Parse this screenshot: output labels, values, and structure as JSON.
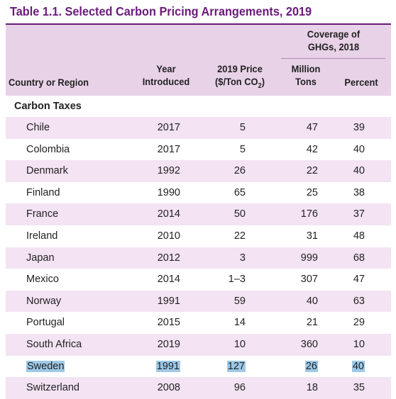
{
  "title": "Table 1.1. Selected Carbon Pricing Arrangements, 2019",
  "headers": {
    "coverage_group": [
      "Coverage of",
      "GHGs, 2018"
    ],
    "country": "Country or Region",
    "year": [
      "Year",
      "Introduced"
    ],
    "price": [
      "2019 Price",
      "($/Ton CO",
      "2",
      ")"
    ],
    "tons": [
      "Million",
      "Tons"
    ],
    "percent": "Percent"
  },
  "section_label": "Carbon Taxes",
  "rows": [
    {
      "country": "Chile",
      "year": "2017",
      "price": "5",
      "tons": "47",
      "percent": "39"
    },
    {
      "country": "Colombia",
      "year": "2017",
      "price": "5",
      "tons": "42",
      "percent": "40"
    },
    {
      "country": "Denmark",
      "year": "1992",
      "price": "26",
      "tons": "22",
      "percent": "40"
    },
    {
      "country": "Finland",
      "year": "1990",
      "price": "65",
      "tons": "25",
      "percent": "38"
    },
    {
      "country": "France",
      "year": "2014",
      "price": "50",
      "tons": "176",
      "percent": "37"
    },
    {
      "country": "Ireland",
      "year": "2010",
      "price": "22",
      "tons": "31",
      "percent": "48"
    },
    {
      "country": "Japan",
      "year": "2012",
      "price": "3",
      "tons": "999",
      "percent": "68"
    },
    {
      "country": "Mexico",
      "year": "2014",
      "price": "1–3",
      "tons": "307",
      "percent": "47"
    },
    {
      "country": "Norway",
      "year": "1991",
      "price": "59",
      "tons": "40",
      "percent": "63"
    },
    {
      "country": "Portugal",
      "year": "2015",
      "price": "14",
      "tons": "21",
      "percent": "29"
    },
    {
      "country": "South Africa",
      "year": "2019",
      "price": "10",
      "tons": "360",
      "percent": "10"
    },
    {
      "country": "Sweden",
      "year": "1991",
      "price": "127",
      "tons": "26",
      "percent": "40",
      "highlighted": true
    },
    {
      "country": "Switzerland",
      "year": "2008",
      "price": "96",
      "tons": "18",
      "percent": "35"
    }
  ],
  "colors": {
    "title": "#6a1b7a",
    "header_bg": "#e8d2e8",
    "row_alt_bg": "#f3e3f3",
    "highlight": "#9ec9e8"
  }
}
